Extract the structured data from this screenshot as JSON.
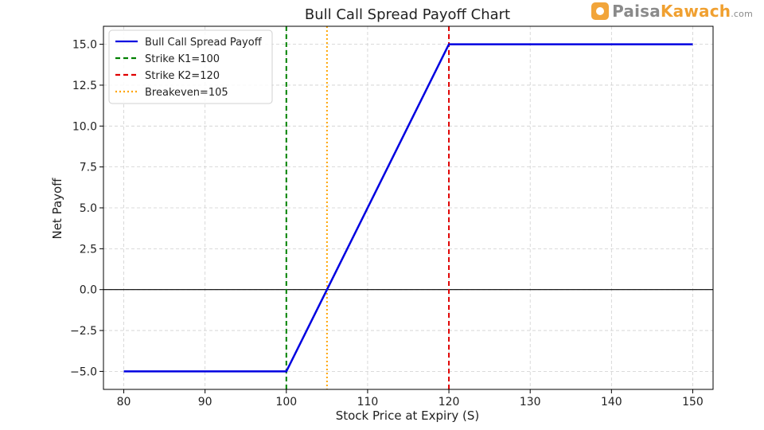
{
  "logo": {
    "part1": "Paisa",
    "part2": "Kawach",
    "part3": ".com"
  },
  "chart_data": {
    "type": "line",
    "title": "Bull Call Spread Payoff Chart",
    "xlabel": "Stock Price at Expiry (S)",
    "ylabel": "Net Payoff",
    "xlim": [
      77.5,
      152.5
    ],
    "ylim": [
      -6.1,
      16.1
    ],
    "xticks": [
      80,
      90,
      100,
      110,
      120,
      130,
      140,
      150
    ],
    "yticks": [
      -5.0,
      -2.5,
      0.0,
      2.5,
      5.0,
      7.5,
      10.0,
      12.5,
      15.0
    ],
    "xtick_labels": [
      "80",
      "90",
      "100",
      "110",
      "120",
      "130",
      "140",
      "150"
    ],
    "ytick_labels": [
      "−5.0",
      "−2.5",
      "0.0",
      "2.5",
      "5.0",
      "7.5",
      "10.0",
      "12.5",
      "15.0"
    ],
    "grid": true,
    "legend_position": "upper-left",
    "series": [
      {
        "name": "Bull Call Spread Payoff",
        "color": "#0000e0",
        "x": [
          80,
          100,
          120,
          150
        ],
        "y": [
          -5,
          -5,
          15,
          15
        ]
      }
    ],
    "hlines": [
      {
        "y": 0,
        "color": "#000000"
      }
    ],
    "vlines": [
      {
        "name": "Strike K1=100",
        "x": 100,
        "color": "#008000",
        "style": "dashed"
      },
      {
        "name": "Strike K2=120",
        "x": 120,
        "color": "#e00000",
        "style": "dashed"
      },
      {
        "name": "Breakeven=105",
        "x": 105,
        "color": "#ffa500",
        "style": "dotted"
      }
    ]
  }
}
